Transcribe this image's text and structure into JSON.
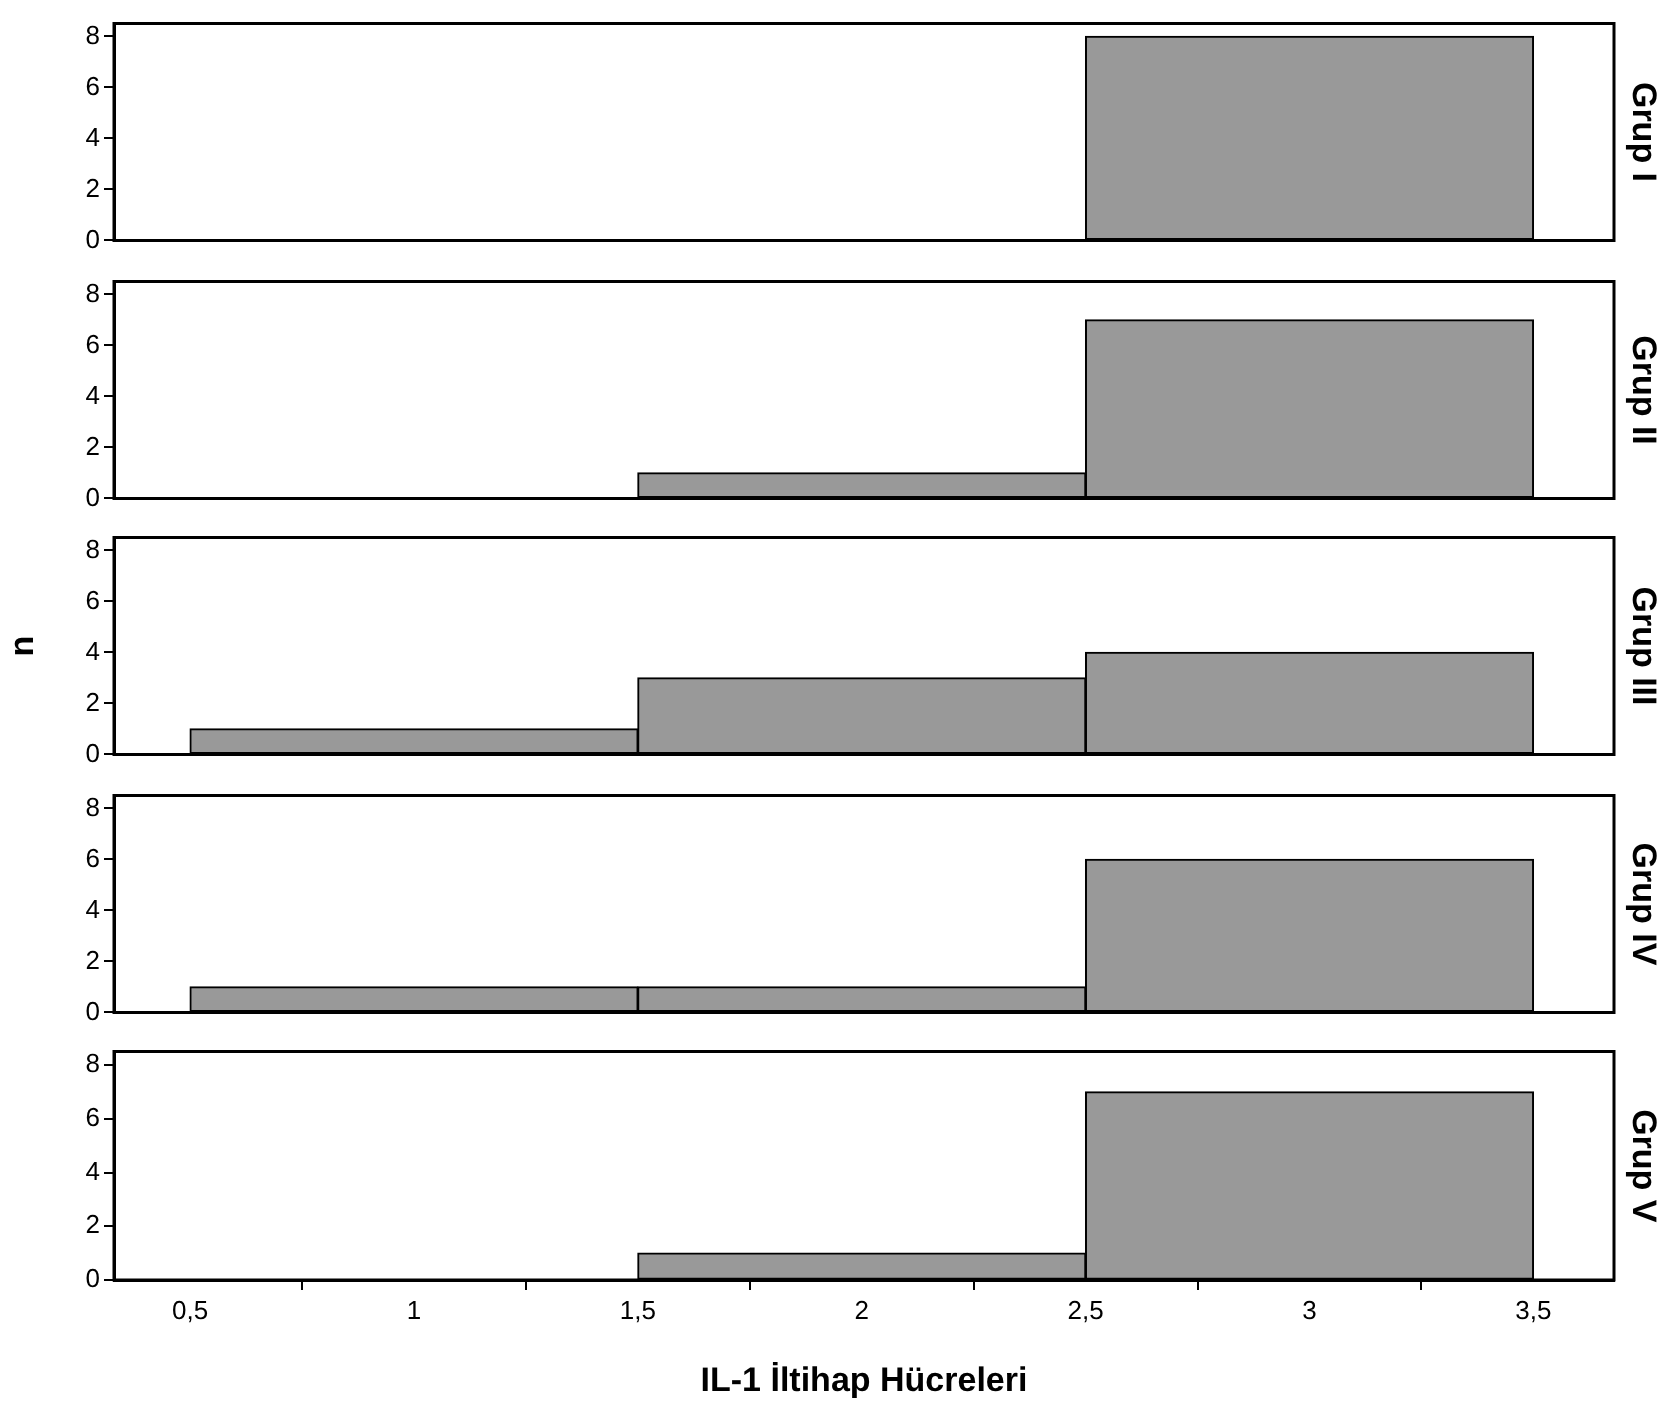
{
  "chart_data": [
    {
      "type": "histogram",
      "title": "Grup I",
      "bins": [
        0.5,
        1.5,
        2.5,
        3.5
      ],
      "values": [
        0,
        0,
        8
      ],
      "color": "#999999",
      "xlim": [
        0.33,
        3.68
      ],
      "ylim": [
        0,
        8.5
      ],
      "yticks": [
        0,
        2,
        4,
        6,
        8
      ],
      "tick_labels": "y",
      "grid": false,
      "legend": false
    },
    {
      "type": "histogram",
      "title": "Grup II",
      "bins": [
        0.5,
        1.5,
        2.5,
        3.5
      ],
      "values": [
        0,
        1,
        7
      ],
      "color": "#999999",
      "xlim": [
        0.33,
        3.68
      ],
      "ylim": [
        0,
        8.5
      ],
      "yticks": [
        0,
        2,
        4,
        6,
        8
      ],
      "tick_labels": "y",
      "grid": false,
      "legend": false
    },
    {
      "type": "histogram",
      "title": "Grup III",
      "ylabel": "n",
      "bins": [
        0.5,
        1.5,
        2.5,
        3.5
      ],
      "values": [
        1,
        3,
        4
      ],
      "color": "#999999",
      "xlim": [
        0.33,
        3.68
      ],
      "ylim": [
        0,
        8.5
      ],
      "yticks": [
        0,
        2,
        4,
        6,
        8
      ],
      "tick_labels": "y",
      "grid": false,
      "legend": false
    },
    {
      "type": "histogram",
      "title": "Grup IV",
      "bins": [
        0.5,
        1.5,
        2.5,
        3.5
      ],
      "values": [
        1,
        1,
        6
      ],
      "color": "#999999",
      "xlim": [
        0.33,
        3.68
      ],
      "ylim": [
        0,
        8.5
      ],
      "yticks": [
        0,
        2,
        4,
        6,
        8
      ],
      "tick_labels": "y",
      "grid": false,
      "legend": false
    },
    {
      "type": "histogram",
      "title": "Grup V",
      "xlabel": "IL-1 İltihap Hücreleri",
      "bins": [
        0.5,
        1.5,
        2.5,
        3.5
      ],
      "values": [
        0,
        1,
        7
      ],
      "color": "#999999",
      "xlim": [
        0.33,
        3.68
      ],
      "ylim": [
        0,
        8.5
      ],
      "yticks": [
        0,
        2,
        4,
        6,
        8
      ],
      "xticks": [
        {
          "value": 0.5,
          "label": "0,5"
        },
        1,
        {
          "value": 1.5,
          "label": "1,5"
        },
        2,
        {
          "value": 2.5,
          "label": "2,5"
        },
        3,
        {
          "value": 3.5,
          "label": "3,5"
        }
      ],
      "grid": false,
      "legend": false
    }
  ]
}
